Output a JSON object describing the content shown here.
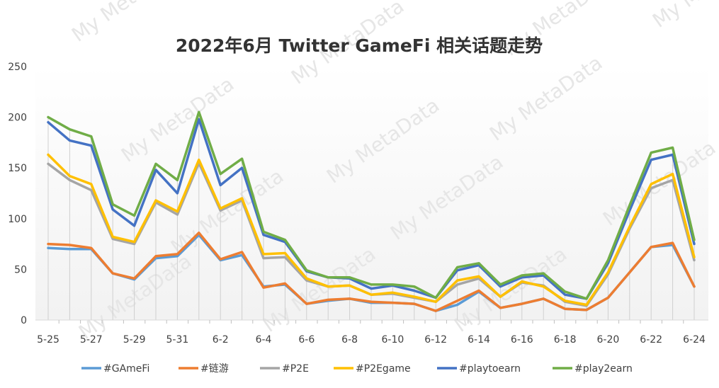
{
  "chart_data": {
    "type": "line",
    "title": "2022年6月 Twitter GameFi 相关话题走势",
    "watermark": "My MetaData",
    "x_tick_labels": [
      "5-25",
      "5-27",
      "5-29",
      "5-31",
      "6-2",
      "6-4",
      "6-6",
      "6-8",
      "6-10",
      "6-12",
      "6-14",
      "6-16",
      "6-18",
      "6-20",
      "6-22",
      "6-24"
    ],
    "categories": [
      "5-25",
      "5-26",
      "5-27",
      "5-28",
      "5-29",
      "5-30",
      "5-31",
      "6-1",
      "6-2",
      "6-3",
      "6-4",
      "6-5",
      "6-6",
      "6-7",
      "6-8",
      "6-9",
      "6-10",
      "6-11",
      "6-12",
      "6-13",
      "6-14",
      "6-15",
      "6-16",
      "6-17",
      "6-18",
      "6-19",
      "6-20",
      "6-21",
      "6-22",
      "6-23",
      "6-24"
    ],
    "y_ticks": [
      0,
      50,
      100,
      150,
      200,
      250
    ],
    "ylim": [
      0,
      250
    ],
    "legend_position": "bottom",
    "series": [
      {
        "name": "#GAmeFi",
        "color": "#5b9bd5",
        "values": [
          71,
          70,
          70,
          46,
          40,
          61,
          63,
          84,
          59,
          64,
          33,
          35,
          16,
          19,
          21,
          17,
          17,
          16,
          9,
          15,
          28,
          12,
          16,
          21,
          11,
          10,
          22,
          47,
          72,
          74,
          33
        ]
      },
      {
        "name": "#链游",
        "color": "#ed7d31",
        "values": [
          75,
          74,
          71,
          46,
          41,
          63,
          65,
          86,
          60,
          67,
          32,
          36,
          16,
          20,
          21,
          18,
          17,
          16,
          9,
          19,
          29,
          12,
          16,
          21,
          11,
          10,
          22,
          47,
          72,
          76,
          33
        ]
      },
      {
        "name": "#P2E",
        "color": "#a5a5a5",
        "values": [
          154,
          138,
          128,
          80,
          75,
          116,
          104,
          155,
          108,
          118,
          61,
          62,
          39,
          33,
          34,
          25,
          26,
          22,
          18,
          35,
          41,
          23,
          37,
          34,
          18,
          14,
          45,
          90,
          130,
          138,
          59
        ]
      },
      {
        "name": "#P2Egame",
        "color": "#ffc000",
        "values": [
          163,
          142,
          134,
          82,
          77,
          118,
          107,
          158,
          110,
          120,
          65,
          66,
          41,
          33,
          34,
          25,
          27,
          23,
          18,
          39,
          43,
          23,
          38,
          33,
          19,
          15,
          47,
          92,
          134,
          144,
          62
        ]
      },
      {
        "name": "#playtoearn",
        "color": "#4472c4",
        "values": [
          195,
          177,
          172,
          109,
          93,
          148,
          125,
          198,
          133,
          150,
          84,
          77,
          48,
          42,
          41,
          31,
          34,
          29,
          22,
          49,
          54,
          33,
          42,
          44,
          25,
          21,
          56,
          108,
          158,
          163,
          75
        ]
      },
      {
        "name": "#play2earn",
        "color": "#70ad47",
        "values": [
          200,
          188,
          181,
          114,
          103,
          154,
          138,
          205,
          144,
          159,
          87,
          79,
          49,
          42,
          42,
          35,
          35,
          33,
          22,
          52,
          56,
          35,
          44,
          46,
          28,
          21,
          59,
          113,
          165,
          170,
          79
        ]
      }
    ]
  }
}
